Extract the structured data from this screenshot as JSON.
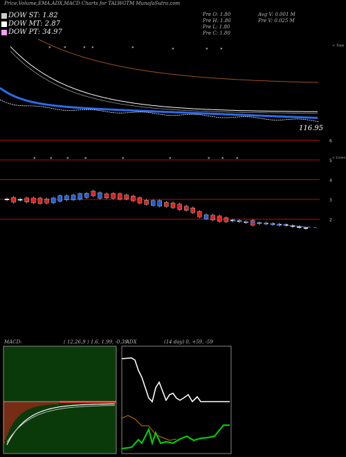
{
  "header": {
    "title": "Price,Volume,EMA,ADX,MACD Charts for TALWGTM MunafaSutra.com",
    "dow_st": "DOW ST: 1.82",
    "dow_mt": "DOW MT: 2.87",
    "dow_pt": "DOW PT: 34.97",
    "pre_o": "Pre   O: 1.80",
    "pre_h": "Pre   H: 1.80",
    "pre_l": "Pre   L: 1.80",
    "pre_c": "Pre   C: 1.80",
    "avg_v": "Avg V: 0.001 M",
    "pre_v": "Pre   V: 0.025 M",
    "ema_value": "116.95",
    "tops_label": "< Tops",
    "lows_label": "< Lows",
    "macd_title": "MACD:",
    "macd_params": "( 12,26,9 ) 1.6, 1.99, -0.39",
    "adx_title": "ADX",
    "adx_params": "(14  day) 0, +59, -59"
  },
  "colors": {
    "up_candle": "#1e5fd8",
    "down_candle": "#e02020",
    "ema_long": "#a0521e",
    "ema_mid": "#ffffff",
    "ema_short": "#2a6cf0",
    "grid_red": "#b01010",
    "dow_st": "#cccccc",
    "dow_mt": "#ffffff",
    "dow_pt": "#ff99ff",
    "macd_bg": "#0a3a0a",
    "adx_plus": "#00cc00",
    "adx_minus": "#cc7a00"
  },
  "chart_data": [
    {
      "type": "candlestick",
      "name": "price",
      "yticks": [
        "6",
        "5",
        "4",
        "3",
        "2"
      ],
      "close": [
        3.0,
        2.98,
        2.98,
        2.97,
        2.95,
        2.93,
        2.92,
        2.95,
        3.05,
        3.08,
        3.1,
        3.15,
        3.2,
        3.3,
        3.2,
        3.18,
        3.18,
        3.15,
        3.12,
        3.05,
        2.95,
        2.85,
        2.82,
        2.8,
        2.75,
        2.7,
        2.62,
        2.55,
        2.45,
        2.25,
        2.12,
        2.08,
        2.02,
        1.97,
        1.93,
        1.9,
        1.85,
        1.82,
        1.8,
        1.78,
        1.75,
        1.72,
        1.7,
        1.65,
        1.6,
        1.55
      ],
      "up_down": [
        "n",
        "d",
        "n",
        "d",
        "d",
        "d",
        "d",
        "u",
        "u",
        "u",
        "u",
        "u",
        "u",
        "d",
        "u",
        "d",
        "d",
        "d",
        "d",
        "d",
        "d",
        "d",
        "u",
        "u",
        "d",
        "d",
        "d",
        "d",
        "d",
        "d",
        "u",
        "d",
        "d",
        "d",
        "n",
        "n",
        "n",
        "d",
        "n",
        "n",
        "n",
        "n",
        "n",
        "n",
        "n",
        "n"
      ]
    },
    {
      "type": "macd",
      "params": [
        12,
        26,
        9
      ],
      "macd": 1.6,
      "signal": 1.99,
      "histogram": -0.39
    },
    {
      "type": "adx",
      "period": 14,
      "adx": 0,
      "plus_di": 59,
      "minus_di": -59
    }
  ]
}
